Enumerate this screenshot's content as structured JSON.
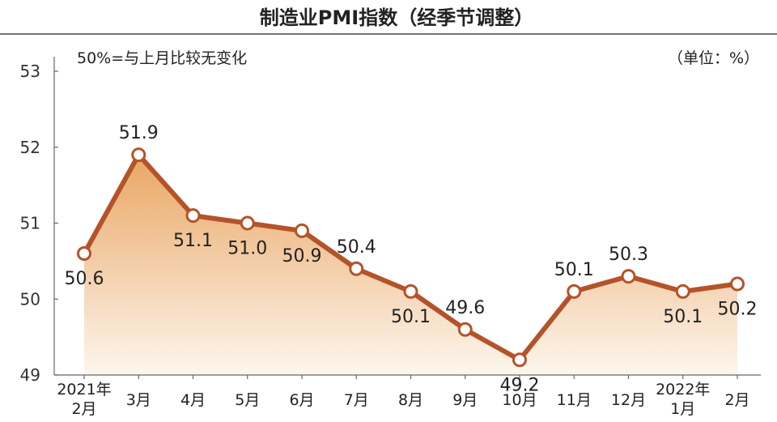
{
  "chart_data": {
    "type": "line",
    "title": "制造业PMI指数（经季节调整）",
    "note": "50%=与上月比较无变化",
    "unit_label": "（单位：%）",
    "categories": [
      [
        "2021年",
        "2月"
      ],
      [
        "3月"
      ],
      [
        "4月"
      ],
      [
        "5月"
      ],
      [
        "6月"
      ],
      [
        "7月"
      ],
      [
        "8月"
      ],
      [
        "9月"
      ],
      [
        "10月"
      ],
      [
        "11月"
      ],
      [
        "12月"
      ],
      [
        "2022年",
        "1月"
      ],
      [
        "2月"
      ]
    ],
    "values": [
      50.6,
      51.9,
      51.1,
      51.0,
      50.9,
      50.4,
      50.1,
      49.6,
      49.2,
      50.1,
      50.3,
      50.1,
      50.2
    ],
    "data_labels": [
      "50.6",
      "51.9",
      "51.1",
      "51.0",
      "50.9",
      "50.4",
      "50.1",
      "49.6",
      "49.2",
      "50.1",
      "50.3",
      "50.1",
      "50.2"
    ],
    "yticks": [
      "49",
      "50",
      "51",
      "52",
      "53"
    ],
    "ylim": [
      49,
      53
    ],
    "grid": false,
    "colors": {
      "line": "#b4532a",
      "marker_fill": "#ffffff",
      "area_top": "#e9a663",
      "area_bottom": "#fdf6ee",
      "axis": "#666666"
    }
  }
}
